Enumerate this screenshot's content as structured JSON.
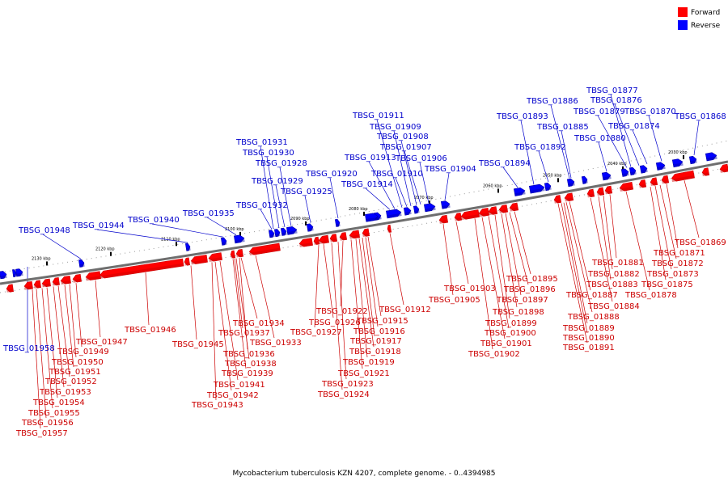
{
  "caption": "Mycobacterium tuberculosis KZN 4207, complete genome. - 0..4394985",
  "colors": {
    "forward": "#ff0000",
    "forward_dark": "#cc0000",
    "reverse": "#0000ff",
    "reverse_dark": "#0000aa",
    "backbone": "#6e6e6e",
    "tick": "#000000",
    "reverse_label": "#0000cc",
    "forward_label": "#cc0000"
  },
  "legend": [
    {
      "label": "Forward",
      "strand": "forward"
    },
    {
      "label": "Reverse",
      "strand": "reverse"
    }
  ],
  "axis": {
    "unit": "kbp",
    "ticks": [
      "2030 kbp",
      "2040 kbp",
      "2050 kbp",
      "2060 kbp",
      "2070 kbp",
      "2080 kbp",
      "2090 kbp",
      "2100 kbp",
      "2110 kbp",
      "2120 kbp",
      "2130 kbp"
    ]
  },
  "reverse_genes": [
    "TBSG_01868",
    "TBSG_01870",
    "TBSG_01874",
    "TBSG_01876",
    "TBSG_01877",
    "TBSG_01879",
    "TBSG_01880",
    "TBSG_01885",
    "TBSG_01886",
    "TBSG_01892",
    "TBSG_01893",
    "TBSG_01894",
    "TBSG_01904",
    "TBSG_01906",
    "TBSG_01907",
    "TBSG_01908",
    "TBSG_01909",
    "TBSG_01910",
    "TBSG_01911",
    "TBSG_01913",
    "TBSG_01914",
    "TBSG_01920",
    "TBSG_01925",
    "TBSG_01928",
    "TBSG_01929",
    "TBSG_01930",
    "TBSG_01931",
    "TBSG_01932",
    "TBSG_01935",
    "TBSG_01940",
    "TBSG_01944",
    "TBSG_01948",
    "TBSG_01958"
  ],
  "forward_genes": [
    "TBSG_01869",
    "TBSG_01871",
    "TBSG_01872",
    "TBSG_01873",
    "TBSG_01875",
    "TBSG_01878",
    "TBSG_01881",
    "TBSG_01882",
    "TBSG_01883",
    "TBSG_01884",
    "TBSG_01887",
    "TBSG_01888",
    "TBSG_01889",
    "TBSG_01890",
    "TBSG_01891",
    "TBSG_01895",
    "TBSG_01896",
    "TBSG_01897",
    "TBSG_01898",
    "TBSG_01899",
    "TBSG_01900",
    "TBSG_01901",
    "TBSG_01902",
    "TBSG_01903",
    "TBSG_01905",
    "TBSG_01912",
    "TBSG_01915",
    "TBSG_01916",
    "TBSG_01917",
    "TBSG_01918",
    "TBSG_01919",
    "TBSG_01921",
    "TBSG_01922",
    "TBSG_01923",
    "TBSG_01924",
    "TBSG_01926",
    "TBSG_01927",
    "TBSG_01933",
    "TBSG_01934",
    "TBSG_01936",
    "TBSG_01937",
    "TBSG_01938",
    "TBSG_01939",
    "TBSG_01941",
    "TBSG_01942",
    "TBSG_01943",
    "TBSG_01945",
    "TBSG_01946",
    "TBSG_01947",
    "TBSG_01949",
    "TBSG_01950",
    "TBSG_01951",
    "TBSG_01952",
    "TBSG_01953",
    "TBSG_01954",
    "TBSG_01955",
    "TBSG_01956",
    "TBSG_01957"
  ]
}
